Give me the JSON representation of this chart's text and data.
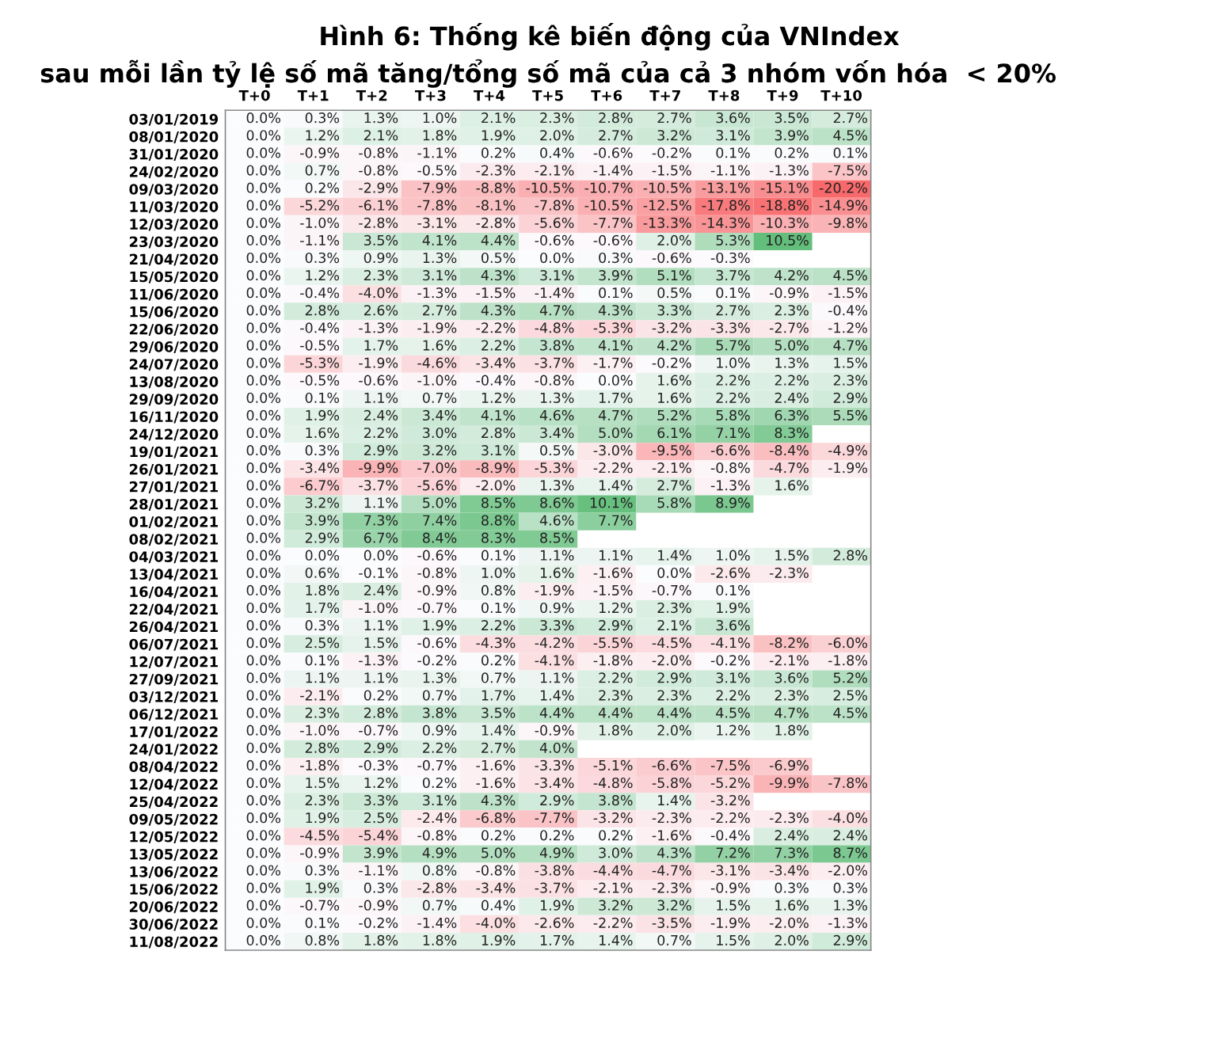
{
  "chart_data": {
    "type": "heatmap",
    "title": "Hình 6: Thống kê biến động của VNIndex",
    "subtitle": "sau mỗi lần tỷ lệ số mã tăng/tổng số mã của cả 3 nhóm vốn hóa  < 20%",
    "categories": [
      "T+0",
      "T+1",
      "T+2",
      "T+3",
      "T+4",
      "T+5",
      "T+6",
      "T+7",
      "T+8",
      "T+9",
      "T+10"
    ],
    "y_categories": [
      "03/01/2019",
      "08/01/2020",
      "31/01/2020",
      "24/02/2020",
      "09/03/2020",
      "11/03/2020",
      "12/03/2020",
      "23/03/2020",
      "21/04/2020",
      "15/05/2020",
      "11/06/2020",
      "15/06/2020",
      "22/06/2020",
      "29/06/2020",
      "24/07/2020",
      "13/08/2020",
      "29/09/2020",
      "16/11/2020",
      "24/12/2020",
      "19/01/2021",
      "26/01/2021",
      "27/01/2021",
      "28/01/2021",
      "01/02/2021",
      "08/02/2021",
      "04/03/2021",
      "13/04/2021",
      "16/04/2021",
      "22/04/2021",
      "26/04/2021",
      "06/07/2021",
      "12/07/2021",
      "27/09/2021",
      "03/12/2021",
      "06/12/2021",
      "17/01/2022",
      "24/01/2022",
      "08/04/2022",
      "12/04/2022",
      "25/04/2022",
      "09/05/2022",
      "12/05/2022",
      "13/05/2022",
      "13/06/2022",
      "15/06/2022",
      "20/06/2022",
      "30/06/2022",
      "11/08/2022"
    ],
    "cells": [
      [
        0.0,
        0.3,
        1.3,
        1.0,
        2.1,
        2.3,
        2.8,
        2.7,
        3.6,
        3.5,
        2.7
      ],
      [
        0.0,
        1.2,
        2.1,
        1.8,
        1.9,
        2.0,
        2.7,
        3.2,
        3.1,
        3.9,
        4.5
      ],
      [
        0.0,
        -0.9,
        -0.8,
        -1.1,
        0.2,
        0.4,
        -0.6,
        -0.2,
        0.1,
        0.2,
        0.1
      ],
      [
        0.0,
        0.7,
        -0.8,
        -0.5,
        -2.3,
        -2.1,
        -1.4,
        -1.5,
        -1.1,
        -1.3,
        -7.5
      ],
      [
        0.0,
        0.2,
        -2.9,
        -7.9,
        -8.8,
        -10.5,
        -10.7,
        -10.5,
        -13.1,
        -15.1,
        -20.2
      ],
      [
        0.0,
        -5.2,
        -6.1,
        -7.8,
        -8.1,
        -7.8,
        -10.5,
        -12.5,
        -17.8,
        -18.8,
        -14.9
      ],
      [
        0.0,
        -1.0,
        -2.8,
        -3.1,
        -2.8,
        -5.6,
        -7.7,
        -13.3,
        -14.3,
        -10.3,
        -9.8
      ],
      [
        0.0,
        -1.1,
        3.5,
        4.1,
        4.4,
        -0.6,
        -0.6,
        2.0,
        5.3,
        10.5,
        null
      ],
      [
        0.0,
        0.3,
        0.9,
        1.3,
        0.5,
        0.0,
        0.3,
        -0.6,
        -0.3,
        null,
        null
      ],
      [
        0.0,
        1.2,
        2.3,
        3.1,
        4.3,
        3.1,
        3.9,
        5.1,
        3.7,
        4.2,
        4.5
      ],
      [
        0.0,
        -0.4,
        -4.0,
        -1.3,
        -1.5,
        -1.4,
        0.1,
        0.5,
        0.1,
        -0.9,
        -1.5
      ],
      [
        0.0,
        2.8,
        2.6,
        2.7,
        4.3,
        4.7,
        4.3,
        3.3,
        2.7,
        2.3,
        -0.4
      ],
      [
        0.0,
        -0.4,
        -1.3,
        -1.9,
        -2.2,
        -4.8,
        -5.3,
        -3.2,
        -3.3,
        -2.7,
        -1.2
      ],
      [
        0.0,
        -0.5,
        1.7,
        1.6,
        2.2,
        3.8,
        4.1,
        4.2,
        5.7,
        5.0,
        4.7
      ],
      [
        0.0,
        -5.3,
        -1.9,
        -4.6,
        -3.4,
        -3.7,
        -1.7,
        -0.2,
        1.0,
        1.3,
        1.5
      ],
      [
        0.0,
        -0.5,
        -0.6,
        -1.0,
        -0.4,
        -0.8,
        0.0,
        1.6,
        2.2,
        2.2,
        2.3
      ],
      [
        0.0,
        0.1,
        1.1,
        0.7,
        1.2,
        1.3,
        1.7,
        1.6,
        2.2,
        2.4,
        2.9
      ],
      [
        0.0,
        1.9,
        2.4,
        3.4,
        4.1,
        4.6,
        4.7,
        5.2,
        5.8,
        6.3,
        5.5
      ],
      [
        0.0,
        1.6,
        2.2,
        3.0,
        2.8,
        3.4,
        5.0,
        6.1,
        7.1,
        8.3,
        null
      ],
      [
        0.0,
        0.3,
        2.9,
        3.2,
        3.1,
        0.5,
        -3.0,
        -9.5,
        -6.6,
        -8.4,
        -4.9
      ],
      [
        0.0,
        -3.4,
        -9.9,
        -7.0,
        -8.9,
        -5.3,
        -2.2,
        -2.1,
        -0.8,
        -4.7,
        -1.9
      ],
      [
        0.0,
        -6.7,
        -3.7,
        -5.6,
        -2.0,
        1.3,
        1.4,
        2.7,
        -1.3,
        1.6,
        null
      ],
      [
        0.0,
        3.2,
        1.1,
        5.0,
        8.5,
        8.6,
        10.1,
        5.8,
        8.9,
        null,
        null
      ],
      [
        0.0,
        3.9,
        7.3,
        7.4,
        8.8,
        4.6,
        7.7,
        null,
        null,
        null,
        null
      ],
      [
        0.0,
        2.9,
        6.7,
        8.4,
        8.3,
        8.5,
        null,
        null,
        null,
        null,
        null
      ],
      [
        0.0,
        0.0,
        0.0,
        -0.6,
        0.1,
        1.1,
        1.1,
        1.4,
        1.0,
        1.5,
        2.8
      ],
      [
        0.0,
        0.6,
        -0.1,
        -0.8,
        1.0,
        1.6,
        -1.6,
        0.0,
        -2.6,
        -2.3,
        null
      ],
      [
        0.0,
        1.8,
        2.4,
        -0.9,
        0.8,
        -1.9,
        -1.5,
        -0.7,
        0.1,
        null,
        null
      ],
      [
        0.0,
        1.7,
        -1.0,
        -0.7,
        0.1,
        0.9,
        1.2,
        2.3,
        1.9,
        null,
        null
      ],
      [
        0.0,
        0.3,
        1.1,
        1.9,
        2.2,
        3.3,
        2.9,
        2.1,
        3.6,
        null,
        null
      ],
      [
        0.0,
        2.5,
        1.5,
        -0.6,
        -4.3,
        -4.2,
        -5.5,
        -4.5,
        -4.1,
        -8.2,
        -6.0
      ],
      [
        0.0,
        0.1,
        -1.3,
        -0.2,
        0.2,
        -4.1,
        -1.8,
        -2.0,
        -0.2,
        -2.1,
        -1.8
      ],
      [
        0.0,
        1.1,
        1.1,
        1.3,
        0.7,
        1.1,
        2.2,
        2.9,
        3.1,
        3.6,
        5.2
      ],
      [
        0.0,
        -2.1,
        0.2,
        0.7,
        1.7,
        1.4,
        2.3,
        2.3,
        2.2,
        2.3,
        2.5
      ],
      [
        0.0,
        2.3,
        2.8,
        3.8,
        3.5,
        4.4,
        4.4,
        4.4,
        4.5,
        4.7,
        4.5
      ],
      [
        0.0,
        -1.0,
        -0.7,
        0.9,
        1.4,
        -0.9,
        1.8,
        2.0,
        1.2,
        1.8,
        null
      ],
      [
        0.0,
        2.8,
        2.9,
        2.2,
        2.7,
        4.0,
        null,
        null,
        null,
        null,
        null
      ],
      [
        0.0,
        -1.8,
        -0.3,
        -0.7,
        -1.6,
        -3.3,
        -5.1,
        -6.6,
        -7.5,
        -6.9,
        null
      ],
      [
        0.0,
        1.5,
        1.2,
        0.2,
        -1.6,
        -3.4,
        -4.8,
        -5.8,
        -5.2,
        -9.9,
        -7.8
      ],
      [
        0.0,
        2.3,
        3.3,
        3.1,
        4.3,
        2.9,
        3.8,
        1.4,
        -3.2,
        null,
        null
      ],
      [
        0.0,
        1.9,
        2.5,
        -2.4,
        -6.8,
        -7.7,
        -3.2,
        -2.3,
        -2.2,
        -2.3,
        -4.0
      ],
      [
        0.0,
        -4.5,
        -5.4,
        -0.8,
        0.2,
        0.2,
        0.2,
        -1.6,
        -0.4,
        2.4,
        2.4
      ],
      [
        0.0,
        -0.9,
        3.9,
        4.9,
        5.0,
        4.9,
        3.0,
        4.3,
        7.2,
        7.3,
        8.7
      ],
      [
        0.0,
        0.3,
        -1.1,
        0.8,
        -0.8,
        -3.8,
        -4.4,
        -4.7,
        -3.1,
        -3.4,
        -2.0
      ],
      [
        0.0,
        1.9,
        0.3,
        -2.8,
        -3.4,
        -3.7,
        -2.1,
        -2.3,
        -0.9,
        0.3,
        0.3
      ],
      [
        0.0,
        -0.7,
        -0.9,
        0.7,
        0.4,
        1.9,
        3.2,
        3.2,
        1.5,
        1.6,
        1.3
      ],
      [
        0.0,
        0.1,
        -0.2,
        -1.4,
        -4.0,
        -2.6,
        -2.2,
        -3.5,
        -1.9,
        -2.0,
        -1.3
      ],
      [
        0.0,
        0.8,
        1.8,
        1.8,
        1.9,
        1.7,
        1.4,
        0.7,
        1.5,
        2.0,
        2.9
      ]
    ],
    "cell_labels": [
      [
        "0.0%",
        "0.3%",
        "1.3%",
        "1.0%",
        "2.1%",
        "2.3%",
        "2.8%",
        "2.7%",
        "3.6%",
        "3.5%",
        "2.7%"
      ],
      [
        "0.0%",
        "1.2%",
        "2.1%",
        "1.8%",
        "1.9%",
        "2.0%",
        "2.7%",
        "3.2%",
        "3.1%",
        "3.9%",
        "4.5%"
      ],
      [
        "0.0%",
        "-0.9%",
        "-0.8%",
        "-1.1%",
        "0.2%",
        "0.4%",
        "-0.6%",
        "-0.2%",
        "0.1%",
        "0.2%",
        "0.1%"
      ],
      [
        "0.0%",
        "0.7%",
        "-0.8%",
        "-0.5%",
        "-2.3%",
        "-2.1%",
        "-1.4%",
        "-1.5%",
        "-1.1%",
        "-1.3%",
        "-7.5%"
      ],
      [
        "0.0%",
        "0.2%",
        "-2.9%",
        "-7.9%",
        "-8.8%",
        "-10.5%",
        "-10.7%",
        "-10.5%",
        "-13.1%",
        "-15.1%",
        "-20.2%"
      ],
      [
        "0.0%",
        "-5.2%",
        "-6.1%",
        "-7.8%",
        "-8.1%",
        "-7.8%",
        "-10.5%",
        "-12.5%",
        "-17.8%",
        "-18.8%",
        "-14.9%"
      ],
      [
        "0.0%",
        "-1.0%",
        "-2.8%",
        "-3.1%",
        "-2.8%",
        "-5.6%",
        "-7.7%",
        "-13.3%",
        "-14.3%",
        "-10.3%",
        "-9.8%"
      ],
      [
        "0.0%",
        "-1.1%",
        "3.5%",
        "4.1%",
        "4.4%",
        "-0.6%",
        "-0.6%",
        "2.0%",
        "5.3%",
        "10.5%",
        null
      ],
      [
        "0.0%",
        "0.3%",
        "0.9%",
        "1.3%",
        "0.5%",
        "0.0%",
        "0.3%",
        "-0.6%",
        "-0.3%",
        null,
        null
      ],
      [
        "0.0%",
        "1.2%",
        "2.3%",
        "3.1%",
        "4.3%",
        "3.1%",
        "3.9%",
        "5.1%",
        "3.7%",
        "4.2%",
        "4.5%"
      ],
      [
        "0.0%",
        "-0.4%",
        "-4.0%",
        "-1.3%",
        "-1.5%",
        "-1.4%",
        "0.1%",
        "0.5%",
        "0.1%",
        "-0.9%",
        "-1.5%"
      ],
      [
        "0.0%",
        "2.8%",
        "2.6%",
        "2.7%",
        "4.3%",
        "4.7%",
        "4.3%",
        "3.3%",
        "2.7%",
        "2.3%",
        "-0.4%"
      ],
      [
        "0.0%",
        "-0.4%",
        "-1.3%",
        "-1.9%",
        "-2.2%",
        "-4.8%",
        "-5.3%",
        "-3.2%",
        "-3.3%",
        "-2.7%",
        "-1.2%"
      ],
      [
        "0.0%",
        "-0.5%",
        "1.7%",
        "1.6%",
        "2.2%",
        "3.8%",
        "4.1%",
        "4.2%",
        "5.7%",
        "5.0%",
        "4.7%"
      ],
      [
        "0.0%",
        "-5.3%",
        "-1.9%",
        "-4.6%",
        "-3.4%",
        "-3.7%",
        "-1.7%",
        "-0.2%",
        "1.0%",
        "1.3%",
        "1.5%"
      ],
      [
        "0.0%",
        "-0.5%",
        "-0.6%",
        "-1.0%",
        "-0.4%",
        "-0.8%",
        "0.0%",
        "1.6%",
        "2.2%",
        "2.2%",
        "2.3%"
      ],
      [
        "0.0%",
        "0.1%",
        "1.1%",
        "0.7%",
        "1.2%",
        "1.3%",
        "1.7%",
        "1.6%",
        "2.2%",
        "2.4%",
        "2.9%"
      ],
      [
        "0.0%",
        "1.9%",
        "2.4%",
        "3.4%",
        "4.1%",
        "4.6%",
        "4.7%",
        "5.2%",
        "5.8%",
        "6.3%",
        "5.5%"
      ],
      [
        "0.0%",
        "1.6%",
        "2.2%",
        "3.0%",
        "2.8%",
        "3.4%",
        "5.0%",
        "6.1%",
        "7.1%",
        "8.3%",
        null
      ],
      [
        "0.0%",
        "0.3%",
        "2.9%",
        "3.2%",
        "3.1%",
        "0.5%",
        "-3.0%",
        "-9.5%",
        "-6.6%",
        "-8.4%",
        "-4.9%"
      ],
      [
        "0.0%",
        "-3.4%",
        "-9.9%",
        "-7.0%",
        "-8.9%",
        "-5.3%",
        "-2.2%",
        "-2.1%",
        "-0.8%",
        "-4.7%",
        "-1.9%"
      ],
      [
        "0.0%",
        "-6.7%",
        "-3.7%",
        "-5.6%",
        "-2.0%",
        "1.3%",
        "1.4%",
        "2.7%",
        "-1.3%",
        "1.6%",
        null
      ],
      [
        "0.0%",
        "3.2%",
        "1.1%",
        "5.0%",
        "8.5%",
        "8.6%",
        "10.1%",
        "5.8%",
        "8.9%",
        null,
        null
      ],
      [
        "0.0%",
        "3.9%",
        "7.3%",
        "7.4%",
        "8.8%",
        "4.6%",
        "7.7%",
        null,
        null,
        null,
        null
      ],
      [
        "0.0%",
        "2.9%",
        "6.7%",
        "8.4%",
        "8.3%",
        "8.5%",
        null,
        null,
        null,
        null,
        null
      ],
      [
        "0.0%",
        "0.0%",
        "0.0%",
        "-0.6%",
        "0.1%",
        "1.1%",
        "1.1%",
        "1.4%",
        "1.0%",
        "1.5%",
        "2.8%"
      ],
      [
        "0.0%",
        "0.6%",
        "-0.1%",
        "-0.8%",
        "1.0%",
        "1.6%",
        "-1.6%",
        "0.0%",
        "-2.6%",
        "-2.3%",
        null
      ],
      [
        "0.0%",
        "1.8%",
        "2.4%",
        "-0.9%",
        "0.8%",
        "-1.9%",
        "-1.5%",
        "-0.7%",
        "0.1%",
        null,
        null
      ],
      [
        "0.0%",
        "1.7%",
        "-1.0%",
        "-0.7%",
        "0.1%",
        "0.9%",
        "1.2%",
        "2.3%",
        "1.9%",
        null,
        null
      ],
      [
        "0.0%",
        "0.3%",
        "1.1%",
        "1.9%",
        "2.2%",
        "3.3%",
        "2.9%",
        "2.1%",
        "3.6%",
        null,
        null
      ],
      [
        "0.0%",
        "2.5%",
        "1.5%",
        "-0.6%",
        "-4.3%",
        "-4.2%",
        "-5.5%",
        "-4.5%",
        "-4.1%",
        "-8.2%",
        "-6.0%"
      ],
      [
        "0.0%",
        "0.1%",
        "-1.3%",
        "-0.2%",
        "0.2%",
        "-4.1%",
        "-1.8%",
        "-2.0%",
        "-0.2%",
        "-2.1%",
        "-1.8%"
      ],
      [
        "0.0%",
        "1.1%",
        "1.1%",
        "1.3%",
        "0.7%",
        "1.1%",
        "2.2%",
        "2.9%",
        "3.1%",
        "3.6%",
        "5.2%"
      ],
      [
        "0.0%",
        "-2.1%",
        "0.2%",
        "0.7%",
        "1.7%",
        "1.4%",
        "2.3%",
        "2.3%",
        "2.2%",
        "2.3%",
        "2.5%"
      ],
      [
        "0.0%",
        "2.3%",
        "2.8%",
        "3.8%",
        "3.5%",
        "4.4%",
        "4.4%",
        "4.4%",
        "4.5%",
        "4.7%",
        "4.5%"
      ],
      [
        "0.0%",
        "-1.0%",
        "-0.7%",
        "0.9%",
        "1.4%",
        "-0.9%",
        "1.8%",
        "2.0%",
        "1.2%",
        "1.8%",
        null
      ],
      [
        "0.0%",
        "2.8%",
        "2.9%",
        "2.2%",
        "2.7%",
        "4.0%",
        null,
        null,
        null,
        null,
        null
      ],
      [
        "0.0%",
        "-1.8%",
        "-0.3%",
        "-0.7%",
        "-1.6%",
        "-3.3%",
        "-5.1%",
        "-6.6%",
        "-7.5%",
        "-6.9%",
        null
      ],
      [
        "0.0%",
        "1.5%",
        "1.2%",
        "0.2%",
        "-1.6%",
        "-3.4%",
        "-4.8%",
        "-5.8%",
        "-5.2%",
        "-9.9%",
        "-7.8%"
      ],
      [
        "0.0%",
        "2.3%",
        "3.3%",
        "3.1%",
        "4.3%",
        "2.9%",
        "3.8%",
        "1.4%",
        "-3.2%",
        null,
        null
      ],
      [
        "0.0%",
        "1.9%",
        "2.5%",
        "-2.4%",
        "-6.8%",
        "-7.7%",
        "-3.2%",
        "-2.3%",
        "-2.2%",
        "-2.3%",
        "-4.0%"
      ],
      [
        "0.0%",
        "-4.5%",
        "-5.4%",
        "-0.8%",
        "0.2%",
        "0.2%",
        "0.2%",
        "-1.6%",
        "-0.4%",
        "2.4%",
        "2.4%"
      ],
      [
        "0.0%",
        "-0.9%",
        "3.9%",
        "4.9%",
        "5.0%",
        "4.9%",
        "3.0%",
        "4.3%",
        "7.2%",
        "7.3%",
        "8.7%"
      ],
      [
        "0.0%",
        "0.3%",
        "-1.1%",
        "0.8%",
        "-0.8%",
        "-3.8%",
        "-4.4%",
        "-4.7%",
        "-3.1%",
        "-3.4%",
        "-2.0%"
      ],
      [
        "0.0%",
        "1.9%",
        "0.3%",
        "-2.8%",
        "-3.4%",
        "-3.7%",
        "-2.1%",
        "-2.3%",
        "-0.9%",
        "0.3%",
        "0.3%"
      ],
      [
        "0.0%",
        "-0.7%",
        "-0.9%",
        "0.7%",
        "0.4%",
        "1.9%",
        "3.2%",
        "3.2%",
        "1.5%",
        "1.6%",
        "1.3%"
      ],
      [
        "0.0%",
        "0.1%",
        "-0.2%",
        "-1.4%",
        "-4.0%",
        "-2.6%",
        "-2.2%",
        "-3.5%",
        "-1.9%",
        "-2.0%",
        "-1.3%"
      ],
      [
        "0.0%",
        "0.8%",
        "1.8%",
        "1.8%",
        "1.9%",
        "1.7%",
        "1.4%",
        "0.7%",
        "1.5%",
        "2.0%",
        "2.9%"
      ]
    ]
  }
}
